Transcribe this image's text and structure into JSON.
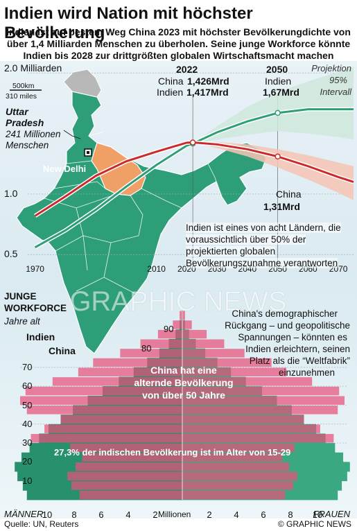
{
  "title": "Indien wird Nation mit höchster Bevölkerung",
  "subtitle_line1": "Indien ist auf bestem Weg China 2023 mit höchster Bevölkerungdichte von",
  "subtitle_line2": "über 1,4 Milliarden Menschen zu überholen. Seine junge Workforce könnte",
  "subtitle_line3": "Indien bis 2028 zur drittgrößten globalen Wirtschaftsmacht machen",
  "map": {
    "scale_km": "500km",
    "scale_miles": "310 miles",
    "region_name_line1": "Uttar",
    "region_name_line2": "Pradesh",
    "region_pop_line1": "241 Millionen",
    "region_pop_line2": "Menschen",
    "capital": "New Delhi"
  },
  "colors": {
    "india_green": "#2e9e78",
    "china_red": "#cc2a2a",
    "uttar_pradesh": "#f0a066",
    "china_pyramid": "#e8507a"
  },
  "chart_data": [
    {
      "type": "line",
      "title": "",
      "ylabel": "2.0 Milliarden",
      "y_tick_labels": [
        "1.0",
        "0.5"
      ],
      "x_tick_labels": [
        "1970",
        "2010",
        "2020",
        "2030",
        "2040",
        "2050",
        "2060",
        "2070"
      ],
      "xlim": [
        1963,
        2075
      ],
      "ylim": [
        0.45,
        2.03
      ],
      "projection_label_line1": "Projektion",
      "projection_label_line2": "95%",
      "projection_label_line3": "Intervall",
      "projection_start": 2023,
      "series": [
        {
          "name": "Indien",
          "color": "#2e9e78",
          "x": [
            1970,
            1980,
            1990,
            2000,
            2010,
            2020,
            2022,
            2030,
            2040,
            2050,
            2060,
            2070,
            2075
          ],
          "y": [
            0.56,
            0.7,
            0.87,
            1.06,
            1.24,
            1.4,
            1.417,
            1.51,
            1.6,
            1.67,
            1.7,
            1.7,
            1.7
          ],
          "band_low": [
            1.4,
            1.417,
            1.45,
            1.49,
            1.52,
            1.5,
            1.47,
            1.45
          ],
          "band_high": [
            1.4,
            1.417,
            1.56,
            1.72,
            1.84,
            1.93,
            2.01,
            2.05
          ],
          "band_x": [
            2020,
            2022,
            2030,
            2040,
            2050,
            2060,
            2070,
            2075
          ]
        },
        {
          "name": "China",
          "color": "#cc2a2a",
          "x": [
            1970,
            1980,
            1990,
            2000,
            2010,
            2020,
            2022,
            2030,
            2040,
            2050,
            2060,
            2070,
            2075
          ],
          "y": [
            0.82,
            0.98,
            1.15,
            1.27,
            1.35,
            1.424,
            1.426,
            1.41,
            1.37,
            1.31,
            1.23,
            1.14,
            1.1
          ],
          "band_low": [
            1.424,
            1.426,
            1.38,
            1.31,
            1.22,
            1.12,
            1.01,
            0.95
          ],
          "band_high": [
            1.424,
            1.426,
            1.43,
            1.41,
            1.37,
            1.32,
            1.26,
            1.23
          ],
          "band_x": [
            2020,
            2022,
            2030,
            2040,
            2050,
            2060,
            2070,
            2075
          ]
        }
      ],
      "annotations": {
        "year_2022": "2022",
        "china_2022_name": "China",
        "china_2022_value": "1,426Mrd",
        "india_2022_name": "Indien",
        "india_2022_value": "1,417Mrd",
        "year_2050": "2050",
        "india_2050_name": "Indien",
        "india_2050_value": "1,67Mrd",
        "china_2050_name": "China",
        "china_2050_value": "1,31Mrd"
      },
      "note": "Indien ist eines von acht Ländern, die voraussichtlich über 50% der projektierten globalen Bevölkerungszunahme verantworten"
    },
    {
      "type": "bar",
      "subtype": "population-pyramid",
      "title_line1": "JUNGE",
      "title_line2": "WORKFORCE",
      "ylabel": "Jahre alt",
      "x_unit": "Millionen",
      "left_label": "MÄNNER",
      "right_label": "FRAUEN",
      "x_tick_labels": [
        "10",
        "8",
        "6",
        "4",
        "2",
        "2",
        "4",
        "6",
        "8",
        "10"
      ],
      "xlim": [
        -12,
        12
      ],
      "y_tick_labels": [
        "10",
        "20",
        "30",
        "40",
        "50",
        "60",
        "70",
        "80",
        "90"
      ],
      "ylim": [
        0,
        100
      ],
      "series": [
        {
          "name": "Indien",
          "color": "#2e9e78",
          "ages": [
            0,
            5,
            10,
            15,
            20,
            25,
            30,
            35,
            40,
            45,
            50,
            55,
            60,
            65,
            70,
            75,
            80,
            85,
            90,
            95
          ],
          "values": [
            11.5,
            11.8,
            12.2,
            12.4,
            11.9,
            11.3,
            10.6,
            9.9,
            9.0,
            8.1,
            7.0,
            5.9,
            4.7,
            3.6,
            2.6,
            1.7,
            1.0,
            0.5,
            0.2,
            0.05
          ]
        },
        {
          "name": "China",
          "color": "#e8507a",
          "ages": [
            0,
            5,
            10,
            15,
            20,
            25,
            30,
            35,
            40,
            45,
            50,
            55,
            60,
            65,
            70,
            75,
            80,
            85,
            90,
            95
          ],
          "values": [
            7.6,
            8.2,
            8.5,
            7.9,
            7.4,
            8.3,
            11.2,
            10.2,
            9.0,
            11.5,
            12.0,
            11.6,
            9.6,
            7.7,
            6.6,
            4.6,
            3.1,
            1.8,
            0.7,
            0.2
          ]
        }
      ],
      "india_label": "Indien",
      "china_label": "China",
      "china_note_line1": "China hat eine",
      "china_note_line2": "alternde Bevölkerung",
      "china_note_line3": "von über 50 Jahre",
      "india_note": "27,3% der indischen Bevölkerung ist im Alter von 15-29",
      "side_note_line1": "China's demographischer",
      "side_note_line2": "Rückgang – und geopolitische",
      "side_note_line3": "Spannungen – könnten es",
      "side_note_line4": "Indien erleichtern, seinen",
      "side_note_line5": "Platz als die “Weltfabrik”",
      "side_note_line6": "einzunehmen"
    }
  ],
  "footer": {
    "source": "Quelle: UN, Reuters",
    "credit": "© GRAPHIC NEWS"
  },
  "watermark": "GRAPHIC NEWS"
}
